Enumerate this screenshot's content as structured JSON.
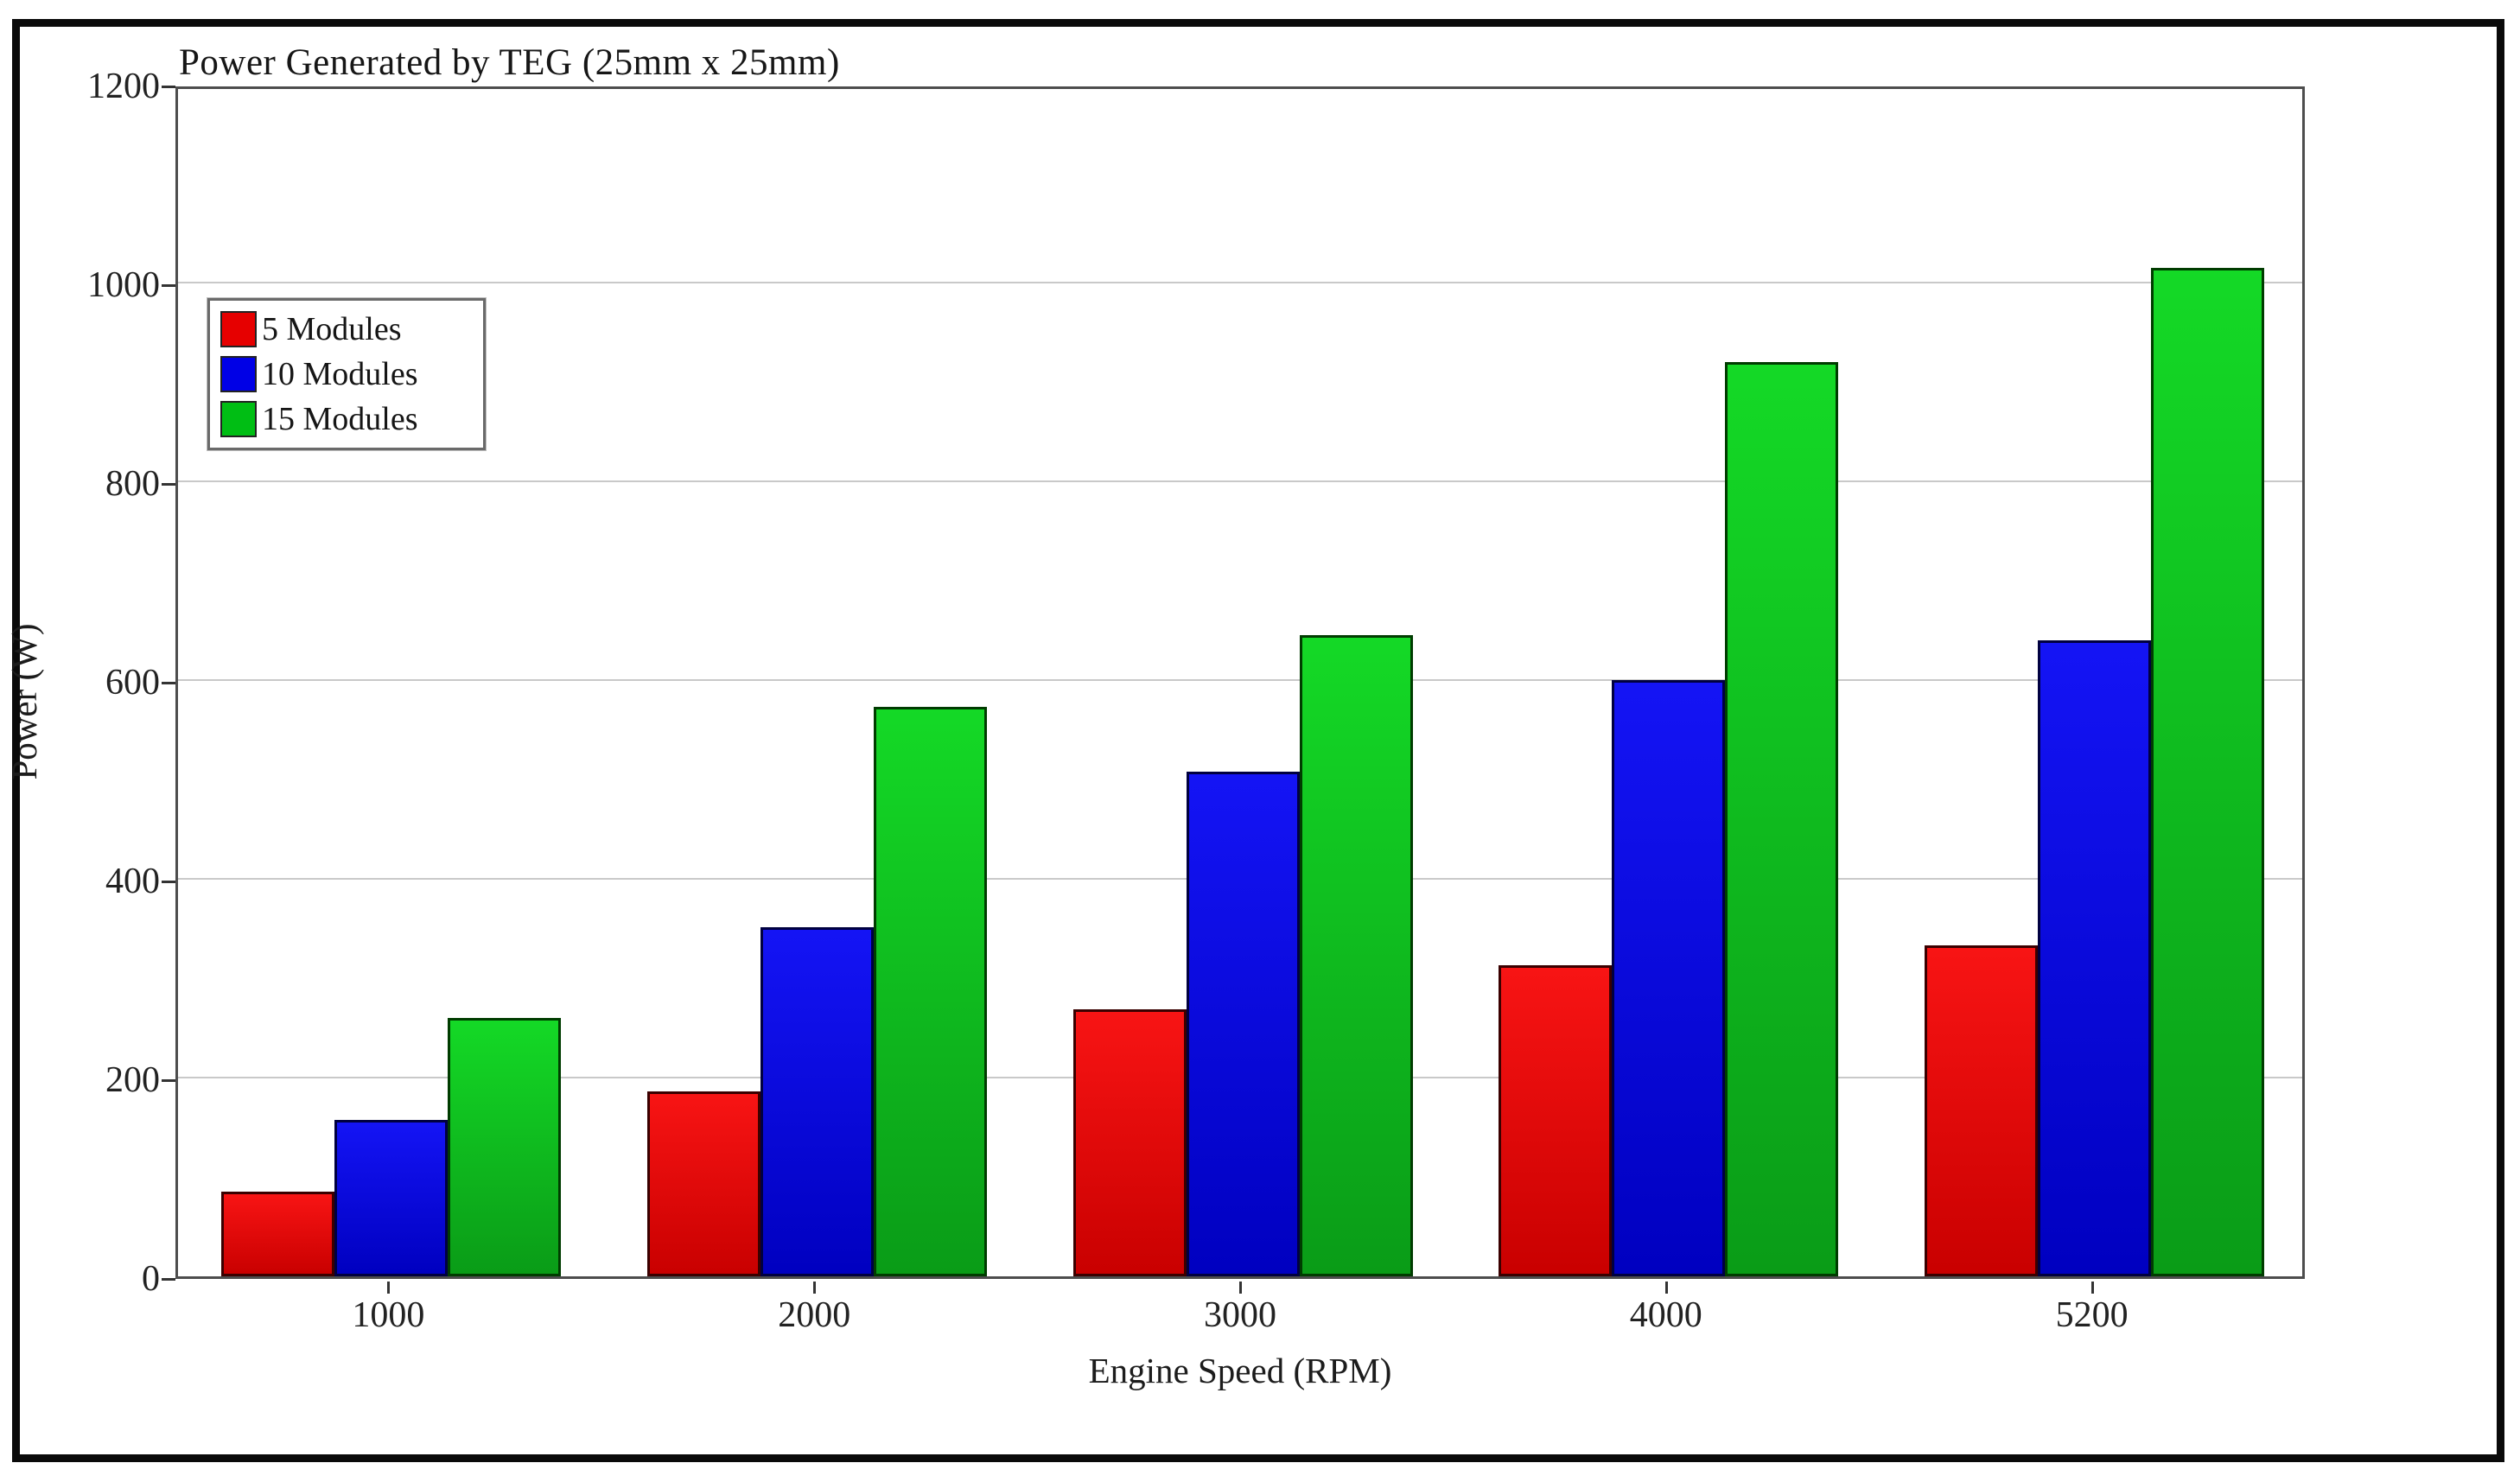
{
  "figure": {
    "background": "#ffffff",
    "frame_color": "#0a0a0a",
    "gridline_color": "#c9c9c9"
  },
  "chart_data": {
    "type": "bar",
    "title": "Power Generated by TEG (25mm x 25mm)",
    "xlabel": "Engine Speed (RPM)",
    "ylabel": "Power (W)",
    "categories": [
      "1000",
      "2000",
      "3000",
      "4000",
      "5200"
    ],
    "series": [
      {
        "name": "5 Modules",
        "color": "#e60000",
        "color_top": "#f81414",
        "color_bottom": "#c90000",
        "border": "#3a0000",
        "values": [
          85,
          186,
          269,
          313,
          333
        ]
      },
      {
        "name": "10 Modules",
        "color": "#0000e6",
        "color_top": "#1414f5",
        "color_bottom": "#0000c0",
        "border": "#000040",
        "values": [
          157,
          351,
          508,
          600,
          640
        ]
      },
      {
        "name": "15 Modules",
        "color": "#00be14",
        "color_top": "#14d926",
        "color_bottom": "#0a9c17",
        "border": "#003c00",
        "values": [
          260,
          573,
          645,
          920,
          1015
        ]
      }
    ],
    "ylim": [
      0,
      1200
    ],
    "yticks": [
      0,
      200,
      400,
      600,
      800,
      1000,
      1200
    ],
    "grid": "horizontal-only",
    "legend_position": "upper-left"
  }
}
